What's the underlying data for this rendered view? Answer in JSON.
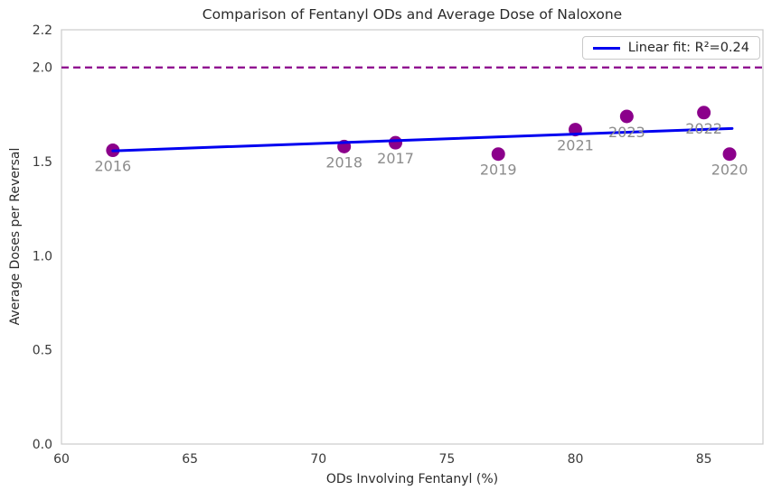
{
  "figure": {
    "title": "Comparison of Fentanyl ODs and Average Dose of Naloxone",
    "xlabel": "ODs Involving Fentanyl (%)",
    "ylabel": "Average Doses per Reversal",
    "legend": {
      "label": "Linear fit: R²=0.24",
      "position": "upper right"
    }
  },
  "chart_data": {
    "type": "scatter",
    "title": "Comparison of Fentanyl ODs and Average Dose of Naloxone",
    "xlabel": "ODs Involving Fentanyl (%)",
    "ylabel": "Average Doses per Reversal",
    "points": [
      {
        "label": "2016",
        "x": 62,
        "y": 1.56
      },
      {
        "label": "2017",
        "x": 73,
        "y": 1.6
      },
      {
        "label": "2018",
        "x": 71,
        "y": 1.58
      },
      {
        "label": "2019",
        "x": 77,
        "y": 1.54
      },
      {
        "label": "2020",
        "x": 86,
        "y": 1.54
      },
      {
        "label": "2021",
        "x": 80,
        "y": 1.67
      },
      {
        "label": "2022",
        "x": 85,
        "y": 1.76
      },
      {
        "label": "2023",
        "x": 82,
        "y": 1.74
      }
    ],
    "fit_line": {
      "x": [
        62,
        86.1
      ],
      "y": [
        1.557,
        1.676
      ],
      "r_squared": 0.24,
      "color": "#0000f0",
      "legend_label": "Linear fit: R²=0.24"
    },
    "reference_line": {
      "y": 2.0,
      "style": "dashed",
      "color": "#8b008b"
    },
    "xticks": [
      {
        "value": 60,
        "label": "60"
      },
      {
        "value": 65,
        "label": "65"
      },
      {
        "value": 70,
        "label": "70"
      },
      {
        "value": 75,
        "label": "75"
      },
      {
        "value": 80,
        "label": "80"
      },
      {
        "value": 85,
        "label": "85"
      }
    ],
    "yticks": [
      {
        "value": 0.0,
        "label": "0.0"
      },
      {
        "value": 0.5,
        "label": "0.5"
      },
      {
        "value": 1.0,
        "label": "1.0"
      },
      {
        "value": 1.5,
        "label": "1.5"
      },
      {
        "value": 2.0,
        "label": "2.0"
      },
      {
        "value": 2.2,
        "label": "2.2"
      }
    ],
    "xlim": [
      60,
      87.3
    ],
    "ylim": [
      0,
      2.2
    ],
    "grid": false,
    "legend_position": "upper right",
    "colors": {
      "point": "#8b008b",
      "point_label": "#8c8c8c",
      "tick_label": "#3a3a3a",
      "spine": "#cbcbcb",
      "fit_line": "#0000f0",
      "reference_line": "#8b008b"
    }
  }
}
